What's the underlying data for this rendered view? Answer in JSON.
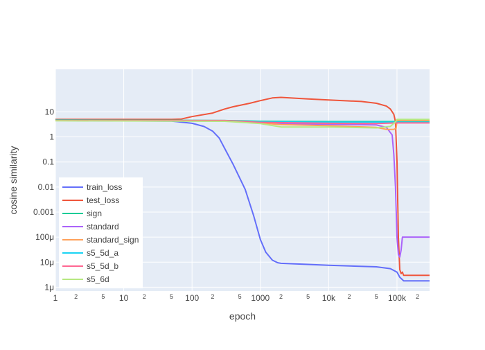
{
  "chart_data": {
    "type": "line",
    "title": "",
    "xlabel": "epoch",
    "ylabel": "cosine similarity",
    "x_scale": "log",
    "y_scale": "log",
    "xlim": [
      1,
      300000
    ],
    "ylim": [
      7e-07,
      500
    ],
    "grid": true,
    "legend_position": "bottom-left",
    "x_ticks": [
      {
        "value": 1,
        "label": "1",
        "major": true
      },
      {
        "value": 2,
        "label": "2",
        "major": false
      },
      {
        "value": 5,
        "label": "5",
        "major": false
      },
      {
        "value": 10,
        "label": "10",
        "major": true
      },
      {
        "value": 20,
        "label": "2",
        "major": false
      },
      {
        "value": 50,
        "label": "5",
        "major": false
      },
      {
        "value": 100,
        "label": "100",
        "major": true
      },
      {
        "value": 200,
        "label": "2",
        "major": false
      },
      {
        "value": 500,
        "label": "5",
        "major": false
      },
      {
        "value": 1000,
        "label": "1000",
        "major": true
      },
      {
        "value": 2000,
        "label": "2",
        "major": false
      },
      {
        "value": 5000,
        "label": "5",
        "major": false
      },
      {
        "value": 10000,
        "label": "10k",
        "major": true
      },
      {
        "value": 20000,
        "label": "2",
        "major": false
      },
      {
        "value": 50000,
        "label": "5",
        "major": false
      },
      {
        "value": 100000,
        "label": "100k",
        "major": true
      },
      {
        "value": 200000,
        "label": "2",
        "major": false
      }
    ],
    "y_ticks": [
      {
        "value": 1e-06,
        "label": "1μ"
      },
      {
        "value": 1e-05,
        "label": "10μ"
      },
      {
        "value": 0.0001,
        "label": "100μ"
      },
      {
        "value": 0.001,
        "label": "0.001"
      },
      {
        "value": 0.01,
        "label": "0.01"
      },
      {
        "value": 0.1,
        "label": "0.1"
      },
      {
        "value": 1,
        "label": "1"
      },
      {
        "value": 10,
        "label": "10"
      }
    ],
    "series": [
      {
        "name": "train_loss",
        "color": "#636efa",
        "points": [
          [
            1,
            4.5
          ],
          [
            50,
            4.3
          ],
          [
            100,
            3.5
          ],
          [
            150,
            2.6
          ],
          [
            200,
            1.7
          ],
          [
            250,
            0.9
          ],
          [
            300,
            0.35
          ],
          [
            400,
            0.08
          ],
          [
            600,
            0.008
          ],
          [
            800,
            0.0007
          ],
          [
            1000,
            8e-05
          ],
          [
            1200,
            2.5e-05
          ],
          [
            1500,
            1.2e-05
          ],
          [
            1800,
            9.5e-06
          ],
          [
            2000,
            9e-06
          ],
          [
            10000,
            7.5e-06
          ],
          [
            50000,
            6.5e-06
          ],
          [
            80000,
            5.5e-06
          ],
          [
            100000,
            4e-06
          ],
          [
            110000,
            2.5e-06
          ],
          [
            120000,
            2e-06
          ],
          [
            125000,
            1.8e-06
          ],
          [
            300000,
            1.8e-06
          ]
        ]
      },
      {
        "name": "test_loss",
        "color": "#ef553b",
        "points": [
          [
            1,
            5
          ],
          [
            50,
            5
          ],
          [
            70,
            5.2
          ],
          [
            100,
            6.5
          ],
          [
            200,
            9
          ],
          [
            300,
            13
          ],
          [
            400,
            16
          ],
          [
            700,
            22
          ],
          [
            1000,
            28
          ],
          [
            1500,
            36
          ],
          [
            2000,
            38
          ],
          [
            5000,
            33
          ],
          [
            10000,
            30
          ],
          [
            30000,
            26
          ],
          [
            50000,
            22
          ],
          [
            70000,
            17
          ],
          [
            80000,
            13
          ],
          [
            90000,
            8
          ],
          [
            95000,
            4
          ],
          [
            100000,
            0.1
          ],
          [
            105000,
            0.0001
          ],
          [
            110000,
            5e-06
          ],
          [
            115000,
            3.5e-06
          ],
          [
            120000,
            4e-06
          ],
          [
            125000,
            3e-06
          ],
          [
            300000,
            3e-06
          ]
        ]
      },
      {
        "name": "sign",
        "color": "#00cc96",
        "points": [
          [
            1,
            4.8
          ],
          [
            300,
            4.5
          ],
          [
            1000,
            4.2
          ],
          [
            10000,
            4.1
          ],
          [
            100000,
            4.1
          ],
          [
            300000,
            4.1
          ]
        ]
      },
      {
        "name": "standard",
        "color": "#ab63fa",
        "points": [
          [
            1,
            4.5
          ],
          [
            300,
            4.3
          ],
          [
            1000,
            3.8
          ],
          [
            2000,
            3.3
          ],
          [
            10000,
            3.2
          ],
          [
            50000,
            3.0
          ],
          [
            70000,
            2.4
          ],
          [
            85000,
            1.2
          ],
          [
            90000,
            0.2
          ],
          [
            95000,
            0.01
          ],
          [
            100000,
            0.0001
          ],
          [
            105000,
            2e-05
          ],
          [
            110000,
            1.6e-05
          ],
          [
            115000,
            3e-05
          ],
          [
            120000,
            0.0001
          ],
          [
            300000,
            0.0001
          ]
        ]
      },
      {
        "name": "standard_sign",
        "color": "#ffa15a",
        "points": [
          [
            1,
            4.6
          ],
          [
            300,
            4.4
          ],
          [
            1000,
            3.6
          ],
          [
            2000,
            3.1
          ],
          [
            10000,
            2.8
          ],
          [
            50000,
            2.4
          ],
          [
            70000,
            2.0
          ],
          [
            90000,
            2.0
          ],
          [
            97000,
            2.2
          ],
          [
            100000,
            4.5
          ],
          [
            300000,
            4.5
          ]
        ]
      },
      {
        "name": "s5_5d_a",
        "color": "#19d3f3",
        "points": [
          [
            1,
            4.5
          ],
          [
            300,
            4.4
          ],
          [
            1000,
            4.0
          ],
          [
            10000,
            3.9
          ],
          [
            100000,
            3.9
          ],
          [
            300000,
            3.9
          ]
        ]
      },
      {
        "name": "s5_5d_b",
        "color": "#ff6692",
        "points": [
          [
            1,
            4.6
          ],
          [
            300,
            4.5
          ],
          [
            1000,
            3.8
          ],
          [
            10000,
            3.5
          ],
          [
            50000,
            3.4
          ],
          [
            100000,
            3.6
          ],
          [
            300000,
            3.6
          ]
        ]
      },
      {
        "name": "s5_6d",
        "color": "#b6e880",
        "points": [
          [
            1,
            4.4
          ],
          [
            300,
            4.2
          ],
          [
            1000,
            3.4
          ],
          [
            2000,
            2.5
          ],
          [
            10000,
            2.5
          ],
          [
            50000,
            2.3
          ],
          [
            80000,
            2.6
          ],
          [
            95000,
            4
          ],
          [
            100000,
            5
          ],
          [
            300000,
            5
          ]
        ]
      }
    ]
  }
}
